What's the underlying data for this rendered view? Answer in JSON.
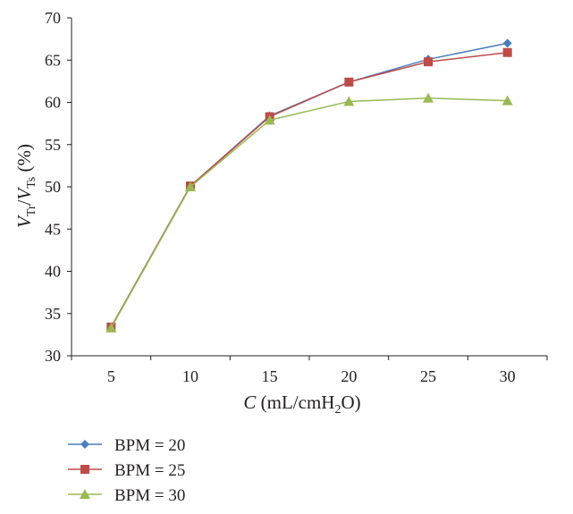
{
  "chart_data": {
    "type": "line",
    "x": [
      5,
      10,
      15,
      20,
      25,
      30
    ],
    "xlabel": {
      "main": "C",
      "rest": " (mL/cmH",
      "sub": "2",
      "tail": "O)"
    },
    "ylabel": {
      "v1": "V",
      "sub1": "Tr",
      "slash": "/",
      "v2": "V",
      "sub2": "Ts",
      "unit": " (%)"
    },
    "yticks": [
      30,
      35,
      40,
      45,
      50,
      55,
      60,
      65,
      70
    ],
    "ylim": [
      30,
      70
    ],
    "legend_position": "bottom-left",
    "series": [
      {
        "name": "BPM = 20",
        "color": "#4a7ebb",
        "marker": "diamond",
        "values": [
          33.4,
          50.1,
          58.4,
          62.4,
          65.1,
          67.0
        ]
      },
      {
        "name": "BPM = 25",
        "color": "#be4b48",
        "marker": "square",
        "values": [
          33.4,
          50.1,
          58.3,
          62.4,
          64.8,
          65.9
        ]
      },
      {
        "name": "BPM = 30",
        "color": "#98b954",
        "marker": "triangle",
        "values": [
          33.3,
          50.0,
          57.9,
          60.1,
          60.5,
          60.2
        ]
      }
    ]
  }
}
